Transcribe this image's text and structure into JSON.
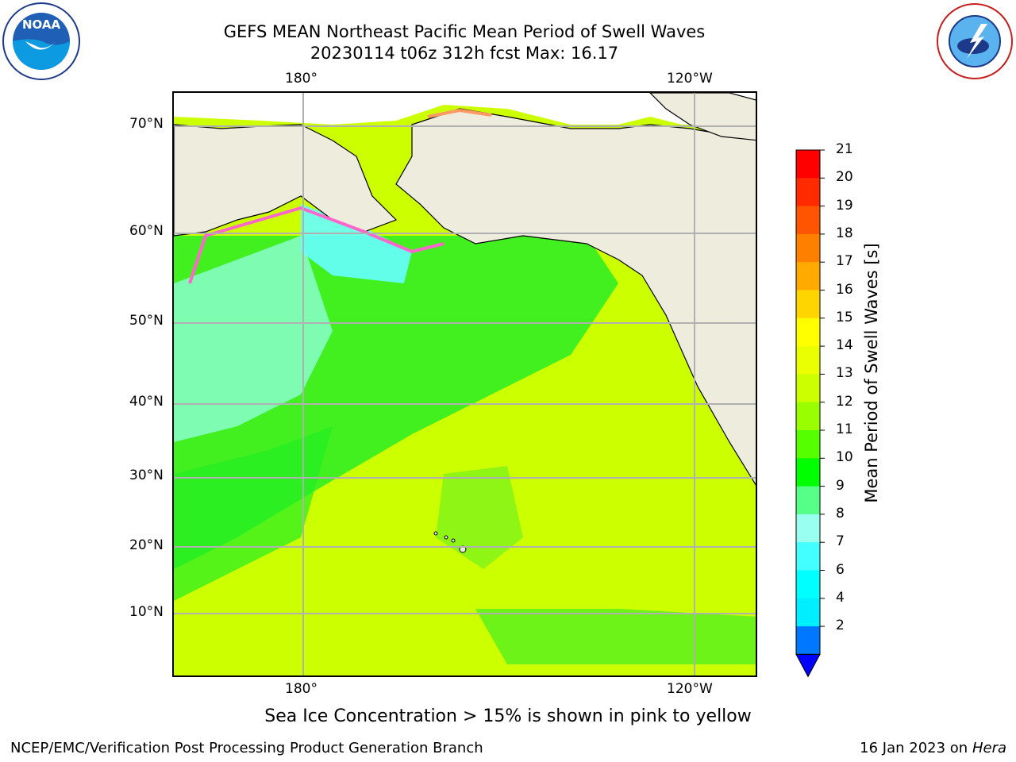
{
  "title_line1": "GEFS MEAN Northeast Pacific Mean Period of Swell Waves",
  "title_line2": "20230114 t06z 312h fcst   Max: 16.17",
  "axes": {
    "top_lon_labels": [
      "180°",
      "120°W"
    ],
    "bottom_lon_labels": [
      "180°",
      "120°W"
    ],
    "lat_labels": [
      "70°N",
      "60°N",
      "50°N",
      "40°N",
      "30°N",
      "20°N",
      "10°N"
    ]
  },
  "colorbar": {
    "label": "Mean Period of Swell Waves [s]",
    "ticks": [
      "21",
      "20",
      "19",
      "18",
      "17",
      "16",
      "15",
      "14",
      "13",
      "12",
      "11",
      "10",
      "9",
      "8",
      "7",
      "6",
      "4",
      "2"
    ],
    "colors_top_to_bottom": [
      "#ff0000",
      "#ff2a00",
      "#ff5500",
      "#ff8000",
      "#ffaa00",
      "#ffd500",
      "#ffff00",
      "#eaff00",
      "#ccff00",
      "#99ff00",
      "#55ff00",
      "#00ff00",
      "#55ff88",
      "#99ffee",
      "#44ffff",
      "#00ffff",
      "#00eeff",
      "#0077ff"
    ],
    "under_color": "#0000ff"
  },
  "sea_ice_note": "Sea Ice Concentration > 15% is shown in pink to yellow",
  "footer_left": "NCEP/EMC/Verification Post Processing Product Generation Branch",
  "footer_date": "16 Jan 2023 on ",
  "footer_machine": "Hera",
  "logos": {
    "left": "NOAA",
    "right": "NATIONAL WEATHER SERVICE"
  },
  "colors": {
    "land": "#eeecdc",
    "grid": "#b0b0b0",
    "ice_edge": "#ff66cc"
  }
}
